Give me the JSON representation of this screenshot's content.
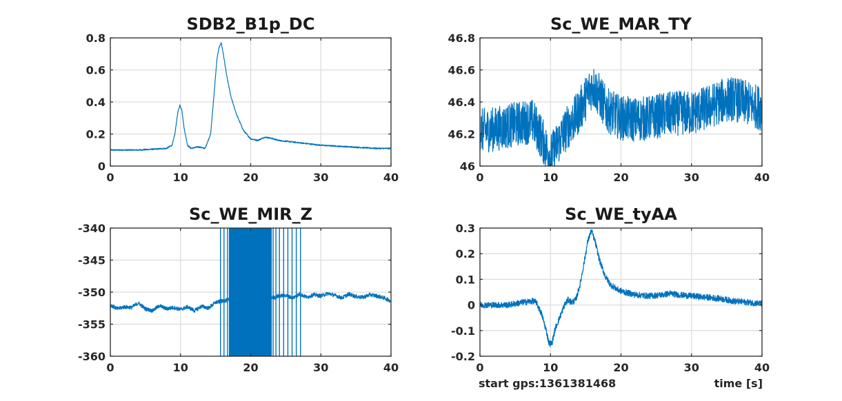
{
  "footer": {
    "start_gps": "start gps:1361381468",
    "time_label": "time [s]"
  },
  "colors": {
    "line": "#0072bd",
    "grid": "#dcdcdc",
    "axis": "#262626"
  },
  "chart_data": [
    {
      "type": "line",
      "title": "SDB2_B1p_DC",
      "xlim": [
        0,
        40
      ],
      "ylim": [
        0,
        0.8
      ],
      "xticks": [
        0,
        10,
        20,
        30,
        40
      ],
      "yticks": [
        0,
        0.2,
        0.4,
        0.6,
        0.8
      ],
      "xtick_labels": [
        "0",
        "10",
        "20",
        "30",
        "40"
      ],
      "ytick_labels": [
        "0",
        "0.2",
        "0.4",
        "0.6",
        "0.8"
      ],
      "grid": true,
      "series": [
        {
          "x": [
            0,
            2,
            4,
            6,
            8,
            8.8,
            9.2,
            9.6,
            9.9,
            10.2,
            10.5,
            11,
            11.5,
            12.5,
            13.5,
            14.3,
            14.8,
            15.2,
            15.5,
            15.8,
            16.1,
            16.6,
            17.2,
            18,
            19,
            20,
            21,
            22,
            22.8,
            24,
            26,
            28,
            30,
            32,
            34,
            36,
            38,
            40
          ],
          "y": [
            0.1,
            0.1,
            0.1,
            0.105,
            0.11,
            0.13,
            0.2,
            0.33,
            0.38,
            0.35,
            0.24,
            0.13,
            0.11,
            0.12,
            0.11,
            0.2,
            0.46,
            0.67,
            0.74,
            0.77,
            0.7,
            0.56,
            0.43,
            0.32,
            0.22,
            0.17,
            0.16,
            0.18,
            0.175,
            0.16,
            0.15,
            0.14,
            0.13,
            0.125,
            0.12,
            0.115,
            0.11,
            0.11
          ],
          "noise": 0.004
        }
      ]
    },
    {
      "type": "line",
      "title": "Sc_WE_MAR_TY",
      "xlim": [
        0,
        40
      ],
      "ylim": [
        46,
        46.8
      ],
      "xticks": [
        0,
        10,
        20,
        30,
        40
      ],
      "yticks": [
        46,
        46.2,
        46.4,
        46.6,
        46.8
      ],
      "xtick_labels": [
        "0",
        "10",
        "20",
        "30",
        "40"
      ],
      "ytick_labels": [
        "46",
        "46.2",
        "46.4",
        "46.6",
        "46.8"
      ],
      "grid": true,
      "series": [
        {
          "x": [
            0,
            2,
            4,
            6,
            7.5,
            8.5,
            9.5,
            10,
            10.5,
            11.5,
            12.5,
            13.5,
            14.5,
            15.5,
            16,
            16.8,
            18,
            20,
            22,
            24,
            26,
            28,
            30,
            32,
            34,
            35.5,
            36,
            38,
            40
          ],
          "y": [
            46.22,
            46.23,
            46.25,
            46.27,
            46.28,
            46.2,
            46.1,
            46.06,
            46.1,
            46.18,
            46.25,
            46.3,
            46.38,
            46.47,
            46.5,
            46.45,
            46.35,
            46.3,
            46.29,
            46.3,
            46.32,
            46.33,
            46.33,
            46.36,
            46.4,
            46.42,
            46.42,
            46.39,
            46.36
          ],
          "noise": 0.14
        }
      ]
    },
    {
      "type": "line",
      "title": "Sc_WE_MIR_Z",
      "xlim": [
        0,
        40
      ],
      "ylim": [
        -360,
        -340
      ],
      "xticks": [
        0,
        10,
        20,
        30,
        40
      ],
      "yticks": [
        -360,
        -355,
        -350,
        -345,
        -340
      ],
      "xtick_labels": [
        "0",
        "10",
        "20",
        "30",
        "40"
      ],
      "ytick_labels": [
        "-360",
        "-355",
        "-350",
        "-345",
        "-340"
      ],
      "grid": true,
      "series": [
        {
          "x": [
            0,
            1,
            2,
            3,
            4,
            5,
            6,
            7,
            8,
            9,
            10,
            11,
            12,
            13,
            14,
            15,
            16,
            17,
            23.5,
            24,
            25,
            26,
            27,
            28,
            29,
            30,
            31,
            32,
            33,
            34,
            35,
            36,
            37,
            38,
            39,
            40
          ],
          "y": [
            -352,
            -352.6,
            -352.3,
            -352.4,
            -351.7,
            -352.6,
            -352.9,
            -352.1,
            -352.6,
            -352.4,
            -352.7,
            -352.3,
            -352.9,
            -352.2,
            -352.5,
            -351.6,
            -351.4,
            -351.2,
            -350.8,
            -350.6,
            -350.5,
            -350.9,
            -350.3,
            -350.8,
            -350.4,
            -350.6,
            -350.2,
            -350.5,
            -350.9,
            -350.3,
            -350.7,
            -350.8,
            -350.4,
            -350.6,
            -350.9,
            -351.4
          ],
          "noise": 0.3
        }
      ],
      "glitch_band": [
        16.9,
        23.0
      ],
      "spike_x": [
        15.7,
        16.2,
        16.7,
        23.2,
        23.6,
        24.1,
        24.7,
        25.3,
        25.9,
        26.5,
        27.1
      ]
    },
    {
      "type": "line",
      "title": "Sc_WE_tyAA",
      "xlim": [
        0,
        40
      ],
      "ylim": [
        -0.2,
        0.3
      ],
      "xticks": [
        0,
        10,
        20,
        30,
        40
      ],
      "yticks": [
        -0.2,
        -0.1,
        0,
        0.1,
        0.2,
        0.3
      ],
      "xtick_labels": [
        "0",
        "10",
        "20",
        "30",
        "40"
      ],
      "ytick_labels": [
        "-0.2",
        "-0.1",
        "0",
        "0.1",
        "0.2",
        "0.3"
      ],
      "grid": true,
      "series": [
        {
          "x": [
            0,
            2,
            4,
            6,
            7.5,
            8,
            8.8,
            9.4,
            9.8,
            10.2,
            10.7,
            11.3,
            12,
            12.5,
            13,
            13.6,
            14.2,
            14.8,
            15.3,
            15.8,
            16.3,
            17,
            17.8,
            18.5,
            19.5,
            20.5,
            22,
            24,
            26,
            27,
            28,
            30,
            32,
            34,
            36,
            38,
            40
          ],
          "y": [
            0.0,
            0.0,
            0.0,
            0.01,
            0.015,
            0.01,
            -0.04,
            -0.1,
            -0.15,
            -0.15,
            -0.09,
            -0.05,
            0.0,
            0.02,
            0.01,
            0.02,
            0.08,
            0.17,
            0.25,
            0.29,
            0.25,
            0.17,
            0.11,
            0.08,
            0.06,
            0.05,
            0.04,
            0.035,
            0.04,
            0.045,
            0.04,
            0.035,
            0.03,
            0.025,
            0.015,
            0.01,
            0.005
          ],
          "noise": 0.012
        }
      ]
    }
  ]
}
